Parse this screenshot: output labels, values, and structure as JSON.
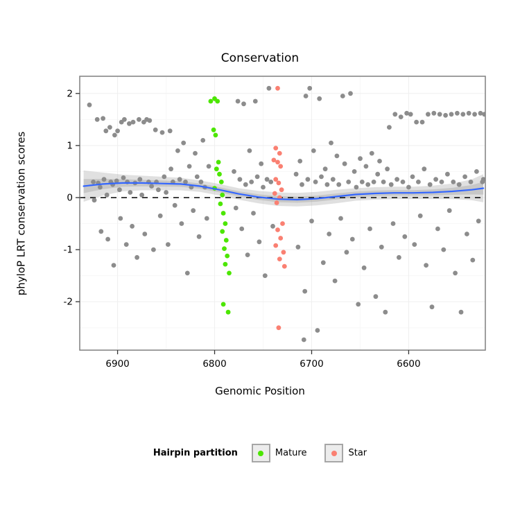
{
  "title": "Conservation",
  "axes": {
    "x_label": "Genomic Position",
    "y_label": "phyloP LRT conservation scores"
  },
  "legend": {
    "title": "Hairpin partition",
    "items": [
      {
        "label": "Mature",
        "color": "#4CE600"
      },
      {
        "label": "Star",
        "color": "#FA8072"
      }
    ]
  },
  "colors": {
    "point_gray": "#8C8C8C",
    "smooth_line": "#3366FF",
    "ribbon": "#999999",
    "hline": "#000000",
    "panel_border": "#7F7F7F",
    "grid_major": "#EFEFEF",
    "grid_minor": "#F7F7F7",
    "tick": "#333333"
  },
  "chart_data": {
    "type": "scatter",
    "title": "Conservation",
    "xlabel": "Genomic Position",
    "ylabel": "phyloP LRT conservation scores",
    "x_reversed": true,
    "x_domain": [
      6939,
      6521
    ],
    "y_domain": [
      2.33,
      -2.93
    ],
    "x_ticks": [
      6900,
      6800,
      6700,
      6600
    ],
    "x_minor_ticks": [
      6850,
      6750,
      6650
    ],
    "y_ticks": [
      2,
      1,
      0,
      -1,
      -2
    ],
    "y_minor_ticks": [
      1.5,
      0.5,
      -0.5,
      -1.5,
      -2.5
    ],
    "hline_y": 0,
    "point_radius": 3.4,
    "series": [
      {
        "name": "Other",
        "color": "#8C8C8C",
        "points": [
          [
            6929,
            1.78
          ],
          [
            6925,
            0.3
          ],
          [
            6924,
            -0.05
          ],
          [
            6921,
            1.5
          ],
          [
            6920,
            0.28
          ],
          [
            6918,
            0.2
          ],
          [
            6917,
            -0.65
          ],
          [
            6915,
            1.52
          ],
          [
            6914,
            0.35
          ],
          [
            6912,
            1.28
          ],
          [
            6911,
            0.05
          ],
          [
            6910,
            -0.8
          ],
          [
            6908,
            1.35
          ],
          [
            6907,
            0.3
          ],
          [
            6905,
            0.25
          ],
          [
            6904,
            -1.3
          ],
          [
            6903,
            1.2
          ],
          [
            6901,
            0.32
          ],
          [
            6900,
            1.28
          ],
          [
            6898,
            0.15
          ],
          [
            6897,
            -0.4
          ],
          [
            6896,
            1.45
          ],
          [
            6894,
            0.38
          ],
          [
            6893,
            1.5
          ],
          [
            6891,
            -0.9
          ],
          [
            6890,
            0.3
          ],
          [
            6888,
            1.42
          ],
          [
            6887,
            0.1
          ],
          [
            6885,
            -0.55
          ],
          [
            6884,
            1.45
          ],
          [
            6882,
            0.28
          ],
          [
            6880,
            -1.15
          ],
          [
            6878,
            1.5
          ],
          [
            6877,
            0.35
          ],
          [
            6875,
            0.05
          ],
          [
            6873,
            1.45
          ],
          [
            6872,
            -0.7
          ],
          [
            6870,
            1.5
          ],
          [
            6868,
            0.3
          ],
          [
            6867,
            1.48
          ],
          [
            6865,
            0.22
          ],
          [
            6863,
            -1.0
          ],
          [
            6861,
            1.3
          ],
          [
            6860,
            0.3
          ],
          [
            6858,
            0.15
          ],
          [
            6856,
            -0.35
          ],
          [
            6854,
            1.25
          ],
          [
            6852,
            0.4
          ],
          [
            6850,
            0.1
          ],
          [
            6848,
            -0.9
          ],
          [
            6846,
            1.28
          ],
          [
            6845,
            0.55
          ],
          [
            6843,
            0.3
          ],
          [
            6841,
            -0.15
          ],
          [
            6838,
            0.9
          ],
          [
            6836,
            0.35
          ],
          [
            6834,
            -0.5
          ],
          [
            6832,
            1.05
          ],
          [
            6830,
            0.3
          ],
          [
            6828,
            -1.45
          ],
          [
            6826,
            0.6
          ],
          [
            6824,
            0.2
          ],
          [
            6822,
            -0.25
          ],
          [
            6820,
            0.85
          ],
          [
            6818,
            0.4
          ],
          [
            6816,
            -0.75
          ],
          [
            6814,
            0.3
          ],
          [
            6812,
            1.1
          ],
          [
            6810,
            0.2
          ],
          [
            6808,
            -0.4
          ],
          [
            6806,
            0.6
          ],
          [
            6780,
            0.5
          ],
          [
            6778,
            -0.2
          ],
          [
            6776,
            1.85
          ],
          [
            6774,
            0.35
          ],
          [
            6772,
            -0.6
          ],
          [
            6770,
            1.8
          ],
          [
            6768,
            0.25
          ],
          [
            6766,
            -1.1
          ],
          [
            6764,
            0.9
          ],
          [
            6762,
            0.3
          ],
          [
            6760,
            -0.3
          ],
          [
            6758,
            1.85
          ],
          [
            6756,
            0.4
          ],
          [
            6754,
            -0.85
          ],
          [
            6752,
            0.65
          ],
          [
            6750,
            0.2
          ],
          [
            6748,
            -1.5
          ],
          [
            6746,
            0.35
          ],
          [
            6744,
            2.1
          ],
          [
            6742,
            0.3
          ],
          [
            6740,
            -0.55
          ],
          [
            6716,
            0.45
          ],
          [
            6714,
            -0.95
          ],
          [
            6712,
            0.7
          ],
          [
            6710,
            0.25
          ],
          [
            6708,
            -2.73
          ],
          [
            6707,
            -1.8
          ],
          [
            6706,
            1.95
          ],
          [
            6704,
            0.35
          ],
          [
            6702,
            2.1
          ],
          [
            6700,
            -0.45
          ],
          [
            6698,
            0.9
          ],
          [
            6696,
            0.3
          ],
          [
            6694,
            -2.55
          ],
          [
            6692,
            1.9
          ],
          [
            6690,
            0.4
          ],
          [
            6688,
            -1.25
          ],
          [
            6686,
            0.55
          ],
          [
            6684,
            0.25
          ],
          [
            6682,
            -0.7
          ],
          [
            6680,
            1.05
          ],
          [
            6678,
            0.35
          ],
          [
            6676,
            -1.6
          ],
          [
            6674,
            0.8
          ],
          [
            6672,
            0.25
          ],
          [
            6670,
            -0.4
          ],
          [
            6668,
            1.95
          ],
          [
            6666,
            0.65
          ],
          [
            6664,
            -1.05
          ],
          [
            6662,
            0.3
          ],
          [
            6660,
            2.0
          ],
          [
            6658,
            -0.8
          ],
          [
            6656,
            0.5
          ],
          [
            6654,
            0.2
          ],
          [
            6652,
            -2.05
          ],
          [
            6650,
            0.75
          ],
          [
            6648,
            0.3
          ],
          [
            6646,
            -1.35
          ],
          [
            6644,
            0.6
          ],
          [
            6642,
            0.25
          ],
          [
            6640,
            -0.6
          ],
          [
            6638,
            0.85
          ],
          [
            6636,
            0.3
          ],
          [
            6634,
            -1.9
          ],
          [
            6632,
            0.45
          ],
          [
            6630,
            0.7
          ],
          [
            6628,
            -0.95
          ],
          [
            6626,
            0.3
          ],
          [
            6624,
            -2.2
          ],
          [
            6622,
            0.55
          ],
          [
            6620,
            1.35
          ],
          [
            6618,
            0.25
          ],
          [
            6616,
            -0.5
          ],
          [
            6614,
            1.6
          ],
          [
            6612,
            0.35
          ],
          [
            6610,
            -1.15
          ],
          [
            6608,
            1.55
          ],
          [
            6606,
            0.3
          ],
          [
            6604,
            -0.75
          ],
          [
            6602,
            1.62
          ],
          [
            6600,
            0.2
          ],
          [
            6598,
            1.6
          ],
          [
            6596,
            0.4
          ],
          [
            6594,
            -0.9
          ],
          [
            6592,
            1.45
          ],
          [
            6590,
            0.3
          ],
          [
            6588,
            -0.35
          ],
          [
            6586,
            1.45
          ],
          [
            6584,
            0.55
          ],
          [
            6582,
            -1.3
          ],
          [
            6580,
            1.6
          ],
          [
            6578,
            0.25
          ],
          [
            6576,
            -2.1
          ],
          [
            6574,
            1.62
          ],
          [
            6572,
            0.35
          ],
          [
            6570,
            -0.6
          ],
          [
            6568,
            1.6
          ],
          [
            6566,
            0.3
          ],
          [
            6564,
            -1.0
          ],
          [
            6562,
            1.58
          ],
          [
            6560,
            0.45
          ],
          [
            6558,
            -0.25
          ],
          [
            6556,
            1.6
          ],
          [
            6554,
            0.3
          ],
          [
            6552,
            -1.45
          ],
          [
            6550,
            1.62
          ],
          [
            6548,
            0.25
          ],
          [
            6546,
            -2.2
          ],
          [
            6544,
            1.6
          ],
          [
            6542,
            0.4
          ],
          [
            6540,
            -0.7
          ],
          [
            6538,
            1.62
          ],
          [
            6536,
            0.3
          ],
          [
            6534,
            -1.2
          ],
          [
            6532,
            1.6
          ],
          [
            6530,
            0.5
          ],
          [
            6528,
            -0.45
          ],
          [
            6526,
            1.62
          ],
          [
            6524,
            0.3
          ],
          [
            6522,
            1.6
          ],
          [
            6523,
            0.35
          ]
        ]
      },
      {
        "name": "Mature",
        "color": "#4CE600",
        "points": [
          [
            6804,
            1.85
          ],
          [
            6800,
            1.9
          ],
          [
            6797,
            1.85
          ],
          [
            6801,
            1.3
          ],
          [
            6799,
            1.2
          ],
          [
            6796,
            0.68
          ],
          [
            6798,
            0.55
          ],
          [
            6795,
            0.45
          ],
          [
            6793,
            0.3
          ],
          [
            6800,
            0.18
          ],
          [
            6792,
            0.05
          ],
          [
            6794,
            -0.12
          ],
          [
            6791,
            -0.3
          ],
          [
            6789,
            -0.5
          ],
          [
            6792,
            -0.65
          ],
          [
            6788,
            -0.82
          ],
          [
            6790,
            -0.98
          ],
          [
            6787,
            -1.12
          ],
          [
            6789,
            -1.28
          ],
          [
            6785,
            -1.45
          ],
          [
            6791,
            -2.05
          ],
          [
            6786,
            -2.2
          ]
        ]
      },
      {
        "name": "Star",
        "color": "#FA8072",
        "points": [
          [
            6735,
            2.1
          ],
          [
            6737,
            0.95
          ],
          [
            6733,
            0.85
          ],
          [
            6739,
            0.72
          ],
          [
            6735,
            0.68
          ],
          [
            6732,
            0.6
          ],
          [
            6737,
            0.35
          ],
          [
            6734,
            0.28
          ],
          [
            6731,
            0.15
          ],
          [
            6738,
            0.08
          ],
          [
            6733,
            0.0
          ],
          [
            6736,
            -0.1
          ],
          [
            6730,
            -0.5
          ],
          [
            6735,
            -0.62
          ],
          [
            6732,
            -0.78
          ],
          [
            6737,
            -0.92
          ],
          [
            6729,
            -1.05
          ],
          [
            6733,
            -1.18
          ],
          [
            6728,
            -1.32
          ],
          [
            6734,
            -2.5
          ]
        ]
      }
    ],
    "smooth": {
      "color": "#3366FF",
      "x": [
        6935,
        6915,
        6895,
        6875,
        6855,
        6835,
        6815,
        6795,
        6775,
        6755,
        6735,
        6715,
        6695,
        6675,
        6655,
        6635,
        6615,
        6595,
        6575,
        6555,
        6535,
        6523
      ],
      "y": [
        0.22,
        0.26,
        0.28,
        0.28,
        0.27,
        0.26,
        0.22,
        0.15,
        0.07,
        0.01,
        -0.03,
        -0.04,
        -0.02,
        0.02,
        0.06,
        0.08,
        0.09,
        0.09,
        0.1,
        0.12,
        0.15,
        0.18
      ],
      "upper": [
        0.52,
        0.48,
        0.44,
        0.42,
        0.4,
        0.38,
        0.33,
        0.26,
        0.18,
        0.13,
        0.1,
        0.09,
        0.11,
        0.15,
        0.18,
        0.2,
        0.21,
        0.21,
        0.23,
        0.27,
        0.35,
        0.45
      ],
      "lower": [
        -0.08,
        0.04,
        0.12,
        0.14,
        0.14,
        0.14,
        0.11,
        0.04,
        -0.04,
        -0.11,
        -0.16,
        -0.17,
        -0.15,
        -0.11,
        -0.06,
        -0.04,
        -0.03,
        -0.03,
        -0.03,
        -0.03,
        -0.05,
        -0.09
      ]
    }
  }
}
